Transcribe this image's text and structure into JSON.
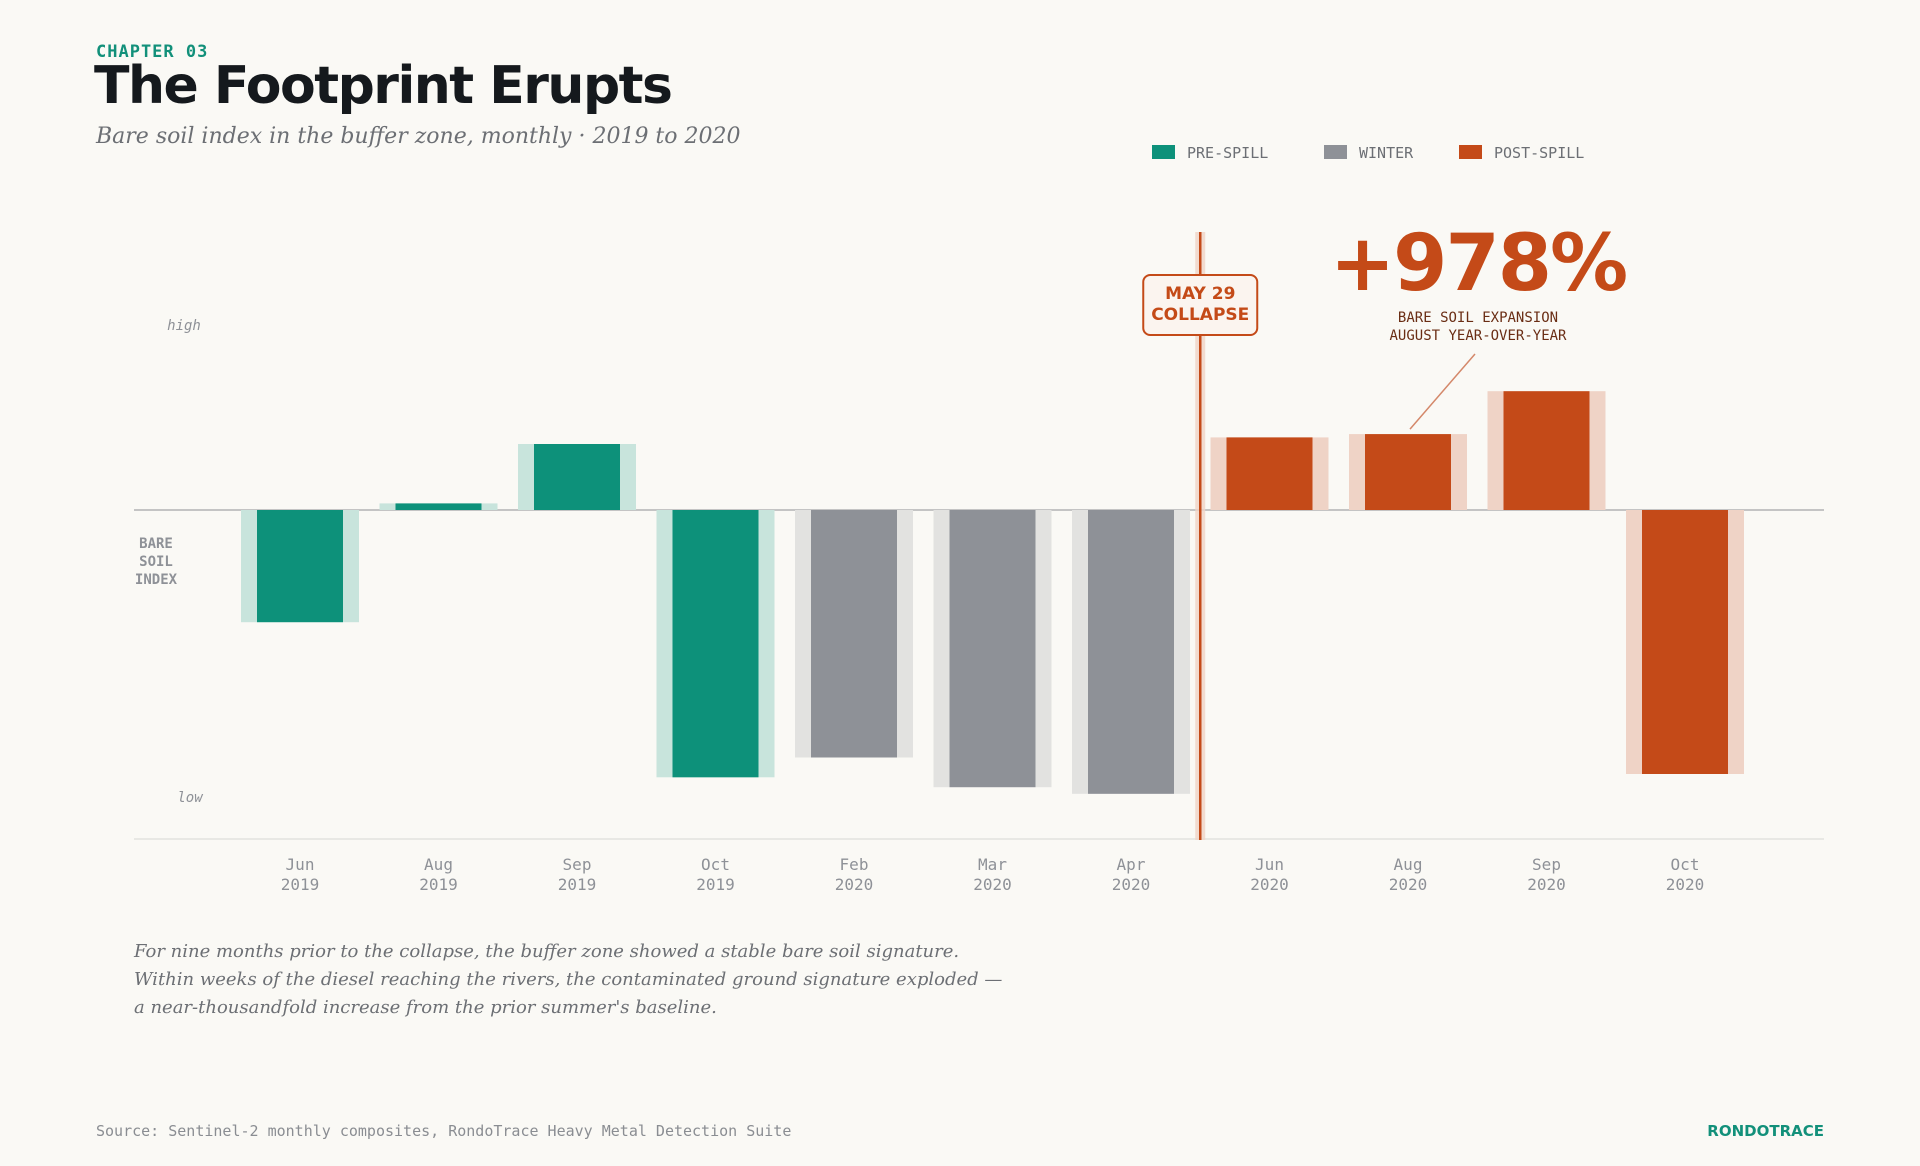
{
  "header": {
    "chapter": "CHAPTER 03",
    "title": "The Footprint Erupts",
    "subtitle": "Bare soil index in the buffer zone, monthly · 2019 to 2020"
  },
  "colors": {
    "pre_spill": "#0d917a",
    "winter": "#8e9197",
    "post_spill": "#c44a18",
    "background": "#faf9f5"
  },
  "chart_data": {
    "type": "bar",
    "ylabel": "BARE\nSOIL\nINDEX",
    "y_high_label": "high",
    "y_low_label": "low",
    "ylim": [
      -100,
      100
    ],
    "legend_position": "top-right",
    "grid": false,
    "legend": [
      {
        "key": "pre",
        "label": "PRE-SPILL"
      },
      {
        "key": "winter",
        "label": "WINTER"
      },
      {
        "key": "post",
        "label": "POST-SPILL"
      }
    ],
    "categories": [
      {
        "month": "Jun",
        "year": "2019",
        "group": "pre",
        "value": -34
      },
      {
        "month": "Aug",
        "year": "2019",
        "group": "pre",
        "value": 2
      },
      {
        "month": "Sep",
        "year": "2019",
        "group": "pre",
        "value": 20
      },
      {
        "month": "Oct",
        "year": "2019",
        "group": "pre",
        "value": -81
      },
      {
        "month": "Feb",
        "year": "2020",
        "group": "winter",
        "value": -75
      },
      {
        "month": "Mar",
        "year": "2020",
        "group": "winter",
        "value": -84
      },
      {
        "month": "Apr",
        "year": "2020",
        "group": "winter",
        "value": -86
      },
      {
        "month": "Jun",
        "year": "2020",
        "group": "post",
        "value": 22
      },
      {
        "month": "Aug",
        "year": "2020",
        "group": "post",
        "value": 23
      },
      {
        "month": "Sep",
        "year": "2020",
        "group": "post",
        "value": 36
      },
      {
        "month": "Oct",
        "year": "2020",
        "group": "post",
        "value": -80
      }
    ],
    "event_marker": {
      "after_index": 6,
      "line1": "MAY 29",
      "line2": "COLLAPSE"
    },
    "callout": {
      "value": "+978%",
      "line1": "BARE SOIL EXPANSION",
      "line2": "AUGUST YEAR-OVER-YEAR",
      "target_index": 8
    }
  },
  "note": [
    "For nine months prior to the collapse, the buffer zone showed a stable bare soil signature.",
    "Within weeks of the diesel reaching the rivers, the contaminated ground signature exploded —",
    "a near-thousandfold increase from the prior summer's baseline."
  ],
  "footer": {
    "source": "Source: Sentinel-2 monthly composites, RondoTrace Heavy Metal Detection Suite",
    "brand": "RONDOTRACE"
  }
}
